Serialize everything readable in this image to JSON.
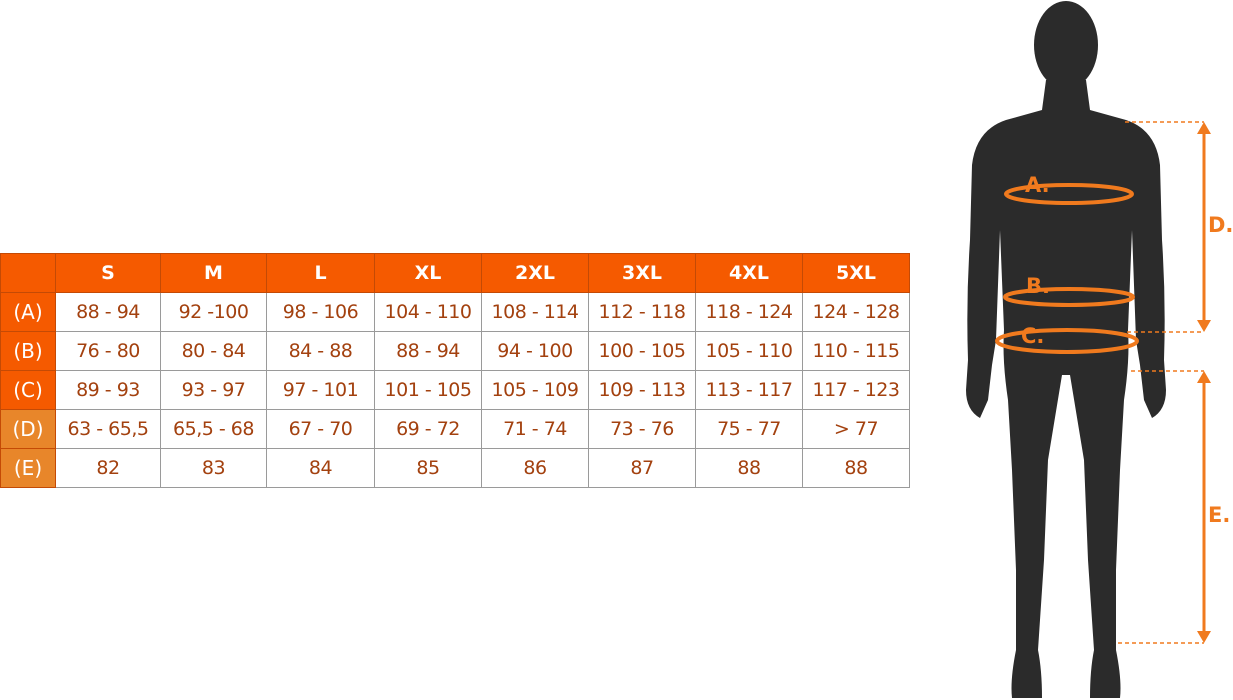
{
  "size_table": {
    "sizes": [
      "S",
      "M",
      "L",
      "XL",
      "2XL",
      "3XL",
      "4XL",
      "5XL"
    ],
    "rows": [
      {
        "label": "(A)",
        "values": [
          "88 - 94",
          "92 -100",
          "98 - 106",
          "104 - 110",
          "108 - 114",
          "112 - 118",
          "118 - 124",
          "124 - 128"
        ]
      },
      {
        "label": "(B)",
        "values": [
          "76 - 80",
          "80 - 84",
          "84 - 88",
          "88 - 94",
          "94 - 100",
          "100 - 105",
          "105 - 110",
          "110 - 115"
        ]
      },
      {
        "label": "(C)",
        "values": [
          "89 - 93",
          "93 - 97",
          "97 - 101",
          "101 - 105",
          "105 - 109",
          "109 - 113",
          "113 - 117",
          "117 - 123"
        ]
      },
      {
        "label": "(D)",
        "values": [
          "63 - 65,5",
          "65,5 - 68",
          "67 - 70",
          "69 - 72",
          "71 - 74",
          "73 - 76",
          "75 - 77",
          "> 77"
        ]
      },
      {
        "label": "(E)",
        "values": [
          "82",
          "83",
          "84",
          "85",
          "86",
          "87",
          "88",
          "88"
        ]
      }
    ]
  },
  "figure": {
    "labels": {
      "a": "A.",
      "b": "B.",
      "c": "C.",
      "d": "D.",
      "e": "E."
    },
    "silhouette_color": "#2b2b2b",
    "accent_color": "#f07a1e"
  },
  "colors": {
    "header": "#f55a00",
    "label_light": "#e8862a",
    "value_text": "#a3410f"
  }
}
